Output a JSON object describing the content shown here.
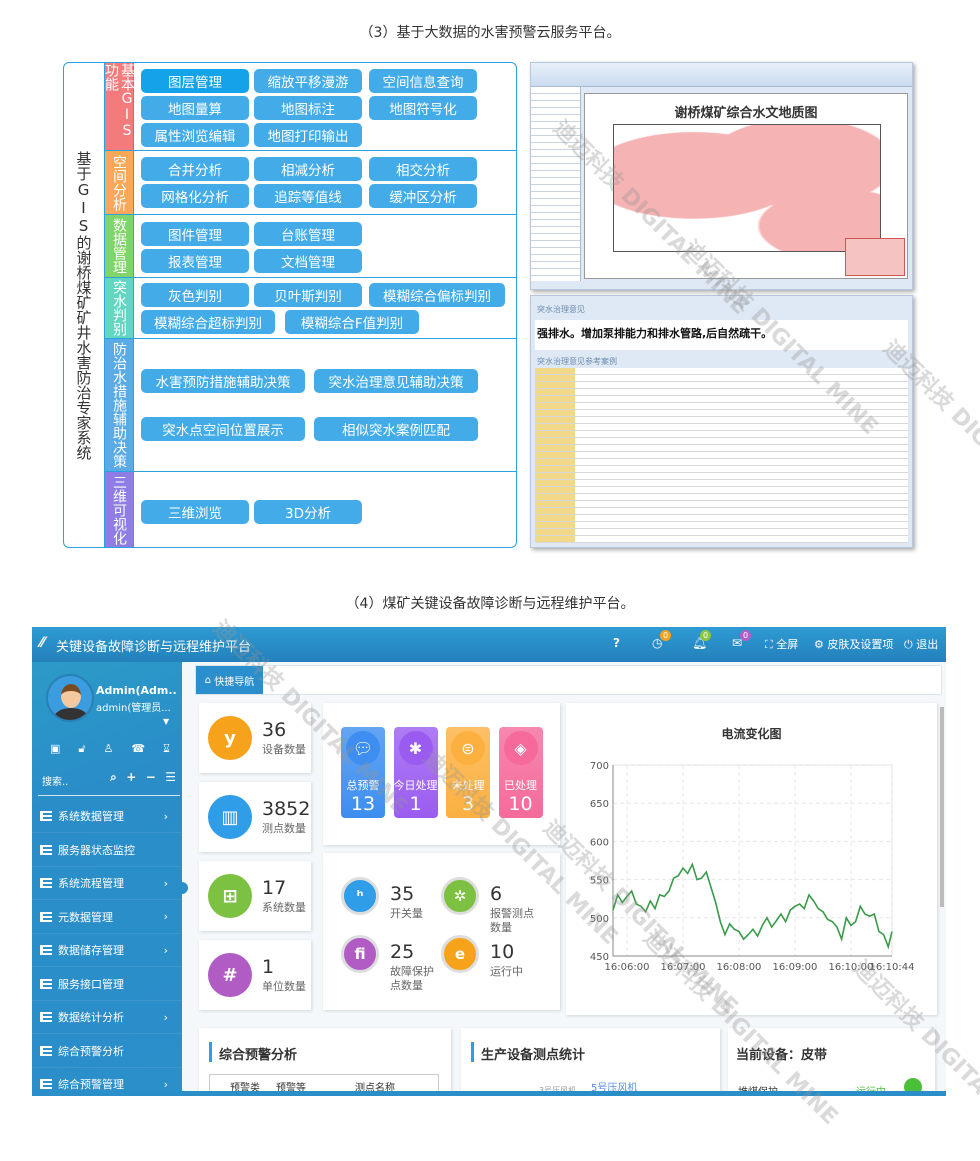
{
  "captions": {
    "section3": "（3）基于大数据的水害预警云服务平台。",
    "section4": "（4）煤矿关键设备故障诊断与远程维护平台。"
  },
  "diagram": {
    "system_title": "基于GIS的谢桥煤矿矿井水害防治专家系统",
    "categories": [
      {
        "label": "基本GIS功能",
        "color": "#f47b7b",
        "items": [
          "图层管理",
          "缩放平移漫游",
          "空间信息查询",
          "地图量算",
          "地图标注",
          "地图符号化",
          "属性浏览编辑",
          "地图打印输出"
        ]
      },
      {
        "label": "空间分析",
        "color": "#f9a85a",
        "items": [
          "合并分析",
          "相减分析",
          "相交分析",
          "网格化分析",
          "追踪等值线",
          "缓冲区分析"
        ]
      },
      {
        "label": "数据管理",
        "color": "#7fd46a",
        "items": [
          "图件管理",
          "台账管理",
          "报表管理",
          "文档管理"
        ]
      },
      {
        "label": "突水判别",
        "color": "#63d6c2",
        "items": [
          "灰色判别",
          "贝叶斯判别",
          "模糊综合偏标判别",
          "模糊综合超标判别",
          "模糊综合F值判别"
        ]
      },
      {
        "label": "防治水措施辅助决策",
        "color": "#5aaae6",
        "items": [
          "水害预防措施辅助决策",
          "突水治理意见辅助决策",
          "突水点空间位置展示",
          "相似突水案例匹配"
        ]
      },
      {
        "label": "三维可视化",
        "color": "#8f7de6",
        "items": [
          "三维浏览",
          "3D分析"
        ]
      }
    ]
  },
  "screenshots": {
    "map_title": "谢桥煤矿综合水文地质图",
    "opinion_header": "突水治理意见",
    "opinion_text": "强排水。增加泵排能力和排水管路,后自然疏干。",
    "cases_header": "突水治理意见参考案例"
  },
  "watermark": {
    "cn": "迪迈科技",
    "en": "DIGITAL MINE"
  },
  "platform": {
    "title": "关键设备故障诊断与远程维护平台",
    "header": {
      "badges": [
        {
          "icon": "clock-icon",
          "count": "0",
          "color": "#f7a21b"
        },
        {
          "icon": "bell-icon",
          "count": "0",
          "color": "#8cc63f"
        },
        {
          "icon": "mail-icon",
          "count": "0",
          "color": "#b45fc8"
        }
      ],
      "fullscreen": "全屏",
      "skin": "皮肤及设置项",
      "logout": "退出"
    },
    "user": {
      "name": "Admin(Adm..",
      "role": "admin(管理员..."
    },
    "search_placeholder": "搜索..",
    "menu": [
      {
        "label": "系统数据管理",
        "sub": true
      },
      {
        "label": "服务器状态监控",
        "sub": false
      },
      {
        "label": "系统流程管理",
        "sub": true
      },
      {
        "label": "元数据管理",
        "sub": true
      },
      {
        "label": "数据储存管理",
        "sub": true
      },
      {
        "label": "服务接口管理",
        "sub": false
      },
      {
        "label": "数据统计分析",
        "sub": true
      },
      {
        "label": "综合预警分析",
        "sub": false
      },
      {
        "label": "综合预警管理",
        "sub": true
      }
    ],
    "quick_nav": "快捷导航",
    "stats": [
      {
        "value": "36",
        "label": "设备数量",
        "color": "#f7a21b",
        "icon": "yoast-icon"
      },
      {
        "value": "3852",
        "label": "测点数量",
        "color": "#2f9de8",
        "icon": "trello-icon"
      },
      {
        "value": "17",
        "label": "系统数量",
        "color": "#7dc142",
        "icon": "windows-icon"
      },
      {
        "value": "1",
        "label": "单位数量",
        "color": "#b05cc4",
        "icon": "hashtag-icon"
      }
    ],
    "alerts": [
      {
        "label": "总预警",
        "value": "13",
        "color": "#3d8ef0",
        "icon": "chat-icon"
      },
      {
        "label": "今日处理",
        "value": "1",
        "color": "#9a5cf0",
        "icon": "yelp-icon"
      },
      {
        "label": "未处理",
        "value": "3",
        "color": "#fbb040",
        "icon": "globe-icon"
      },
      {
        "label": "已处理",
        "value": "10",
        "color": "#f56a9a",
        "icon": "link-icon"
      }
    ],
    "points": [
      {
        "value": "35",
        "label": "开关量",
        "color": "#2f9de8",
        "icon": "houzz-icon"
      },
      {
        "value": "6",
        "label": "报警测点数量",
        "color": "#7dc142",
        "icon": "joomla-icon"
      },
      {
        "value": "25",
        "label": "故障保护点数量",
        "color": "#b05cc4",
        "icon": "fi-icon"
      },
      {
        "value": "10",
        "label": "运行中",
        "color": "#f7a21b",
        "icon": "ie-icon"
      }
    ],
    "bottom": {
      "warning_title": "综合预警分析",
      "warning_cols": [
        "预警类",
        "预警等",
        "测点名称"
      ],
      "stats_title": "生产设备测点统计",
      "stats_labels": [
        "3号压风机",
        "5号压风机"
      ],
      "current_title": "当前设备：皮带",
      "current_item": "堆煤保护",
      "current_status": "运行中"
    }
  },
  "chart_data": {
    "type": "line",
    "title": "电流变化图",
    "ylim": [
      450,
      700
    ],
    "yticks": [
      450,
      500,
      550,
      600,
      650,
      700
    ],
    "xticks": [
      "16:06:00",
      "16:07:00",
      "16:08:00",
      "16:09:00",
      "16:10:00",
      "16:10:44"
    ],
    "grid": true,
    "color": "#3a9a4a",
    "x": [
      "16:05:45",
      "16:05:50",
      "16:05:55",
      "16:06:00",
      "16:06:05",
      "16:06:10",
      "16:06:15",
      "16:06:20",
      "16:06:25",
      "16:06:30",
      "16:06:35",
      "16:06:40",
      "16:06:45",
      "16:06:50",
      "16:06:55",
      "16:07:00",
      "16:07:05",
      "16:07:10",
      "16:07:15",
      "16:07:20",
      "16:07:25",
      "16:07:30",
      "16:07:35",
      "16:07:40",
      "16:07:45",
      "16:07:50",
      "16:07:55",
      "16:08:00",
      "16:08:05",
      "16:08:10",
      "16:08:15",
      "16:08:20",
      "16:08:25",
      "16:08:30",
      "16:08:35",
      "16:08:40",
      "16:08:45",
      "16:08:50",
      "16:08:55",
      "16:09:00",
      "16:09:05",
      "16:09:10",
      "16:09:15",
      "16:09:20",
      "16:09:25",
      "16:09:30",
      "16:09:35",
      "16:09:40",
      "16:09:45",
      "16:09:50",
      "16:09:55",
      "16:10:00",
      "16:10:05",
      "16:10:10",
      "16:10:15",
      "16:10:20",
      "16:10:25",
      "16:10:30",
      "16:10:35",
      "16:10:40",
      "16:10:44"
    ],
    "y": [
      510,
      530,
      520,
      528,
      535,
      518,
      515,
      508,
      522,
      512,
      530,
      528,
      535,
      552,
      555,
      565,
      558,
      570,
      550,
      552,
      560,
      540,
      520,
      495,
      478,
      492,
      485,
      482,
      472,
      478,
      485,
      476,
      490,
      500,
      488,
      496,
      505,
      495,
      510,
      515,
      518,
      512,
      530,
      522,
      512,
      508,
      498,
      495,
      488,
      472,
      500,
      490,
      495,
      515,
      505,
      502,
      505,
      482,
      478,
      462,
      482
    ]
  }
}
